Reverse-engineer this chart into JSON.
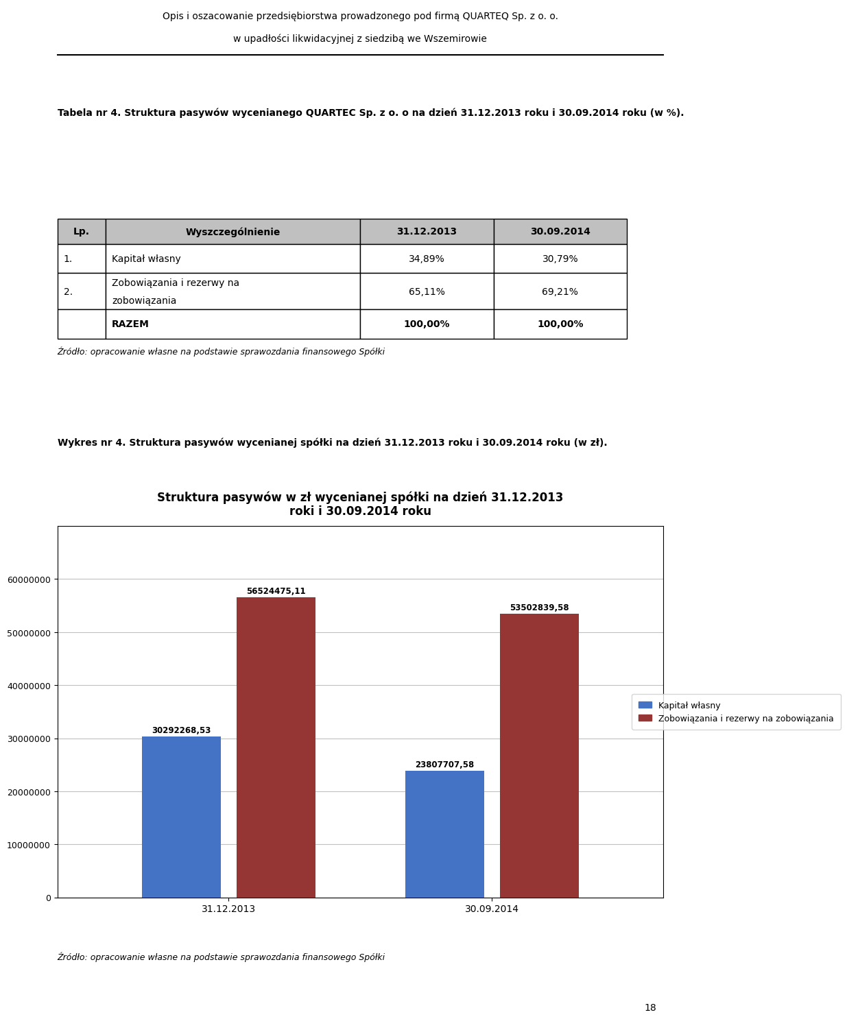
{
  "page_title_line1": "Opis i oszacowanie przedsiębiorstwa prowadzonego pod firmą QUARTEQ Sp. z o. o.",
  "page_title_line2": "w upadłości likwidacyjnej z siedzibą we Wszemirowie",
  "table_heading": "Tabela nr 4. Struktura pasywów wycenianego QUARTEC Sp. z o. o na dzień 31.12.2013 roku i 30.09.2014 roku (w %).",
  "table_col_headers": [
    "Lp.",
    "Wyszczególnienie",
    "31.12.2013",
    "30.09.2014"
  ],
  "table_rows": [
    [
      "1.",
      "Kapitał własny",
      "34,89%",
      "30,79%"
    ],
    [
      "2.",
      "Zobowiązania i rezerwy na zobowiązania",
      "65,11%",
      "69,21%"
    ],
    [
      "",
      "RAZEM",
      "100,00%",
      "100,00%"
    ]
  ],
  "table_source": "Źródło: opracowanie własne na podstawie sprawozdania finansowego Spółki",
  "wykres_heading": "Wykres nr 4. Struktura pasywów wycenianej spółki na dzień 31.12.2013 roku i 30.09.2014 roku (w zł).",
  "chart_title_line1": "Struktura pasywów w zł wycenianej spółki na dzień 31.12.2013",
  "chart_title_line2": "roki i 30.09.2014 roku",
  "categories": [
    "31.12.2013",
    "30.09.2014"
  ],
  "series": [
    {
      "name": "Kapitał własny",
      "values": [
        30292268.53,
        23807707.58
      ],
      "color": "#4472C4"
    },
    {
      "name": "Zobowiązania i rezerwy na zobowiązania",
      "values": [
        56524475.11,
        53502839.58
      ],
      "color": "#963634"
    }
  ],
  "bar_labels": [
    [
      "30292268,53",
      "23807707,58"
    ],
    [
      "56524475,11",
      "53502839,58"
    ]
  ],
  "ylim": [
    0,
    70000000
  ],
  "yticks": [
    0,
    10000000,
    20000000,
    30000000,
    40000000,
    50000000,
    60000000
  ],
  "ytick_labels": [
    "0",
    "10000000",
    "20000000",
    "30000000",
    "40000000",
    "50000000",
    "60000000"
  ],
  "chart_source": "Źródło: opracowanie własne na podstawie sprawozdania finansowego Spółki",
  "page_number": "18",
  "bg_color": "#ffffff",
  "chart_bg_color": "#ffffff",
  "header_bg": "#c0c0c0",
  "table_border_color": "#000000",
  "rule_color": "#000000"
}
